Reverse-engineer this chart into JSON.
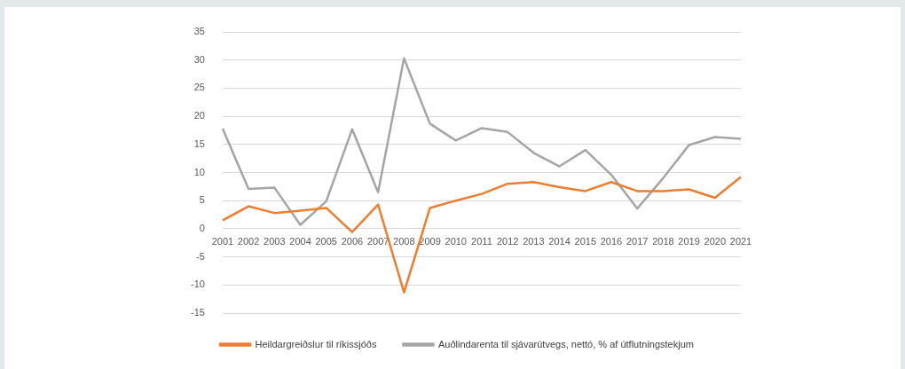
{
  "chart_data": {
    "type": "line",
    "categories": [
      "2001",
      "2002",
      "2003",
      "2004",
      "2005",
      "2006",
      "2007",
      "2008",
      "2009",
      "2010",
      "2011",
      "2012",
      "2013",
      "2014",
      "2015",
      "2016",
      "2017",
      "2018",
      "2019",
      "2020",
      "2021"
    ],
    "series": [
      {
        "name": "Heildargreiðslur til ríkissjóðs",
        "color": "#ed7d31",
        "values": [
          1.5,
          4,
          2.8,
          3.2,
          3.7,
          -0.6,
          4.3,
          -11.3,
          3.7,
          5,
          6.2,
          8,
          8.3,
          7.4,
          6.7,
          8.3,
          6.7,
          6.7,
          7,
          5.5,
          9.2
        ]
      },
      {
        "name": "Auðlindarenta til sjávarútvegs, nettó, % af útflutningstekjum",
        "color": "#a5a5a5",
        "values": [
          17.8,
          7.1,
          7.3,
          0.7,
          4.9,
          17.7,
          6.5,
          30.3,
          18.7,
          15.7,
          17.9,
          17.2,
          13.5,
          11.1,
          14,
          9.6,
          3.6,
          9,
          14.9,
          16.3,
          16
        ]
      }
    ],
    "ylim": [
      -15,
      35
    ],
    "yticks": [
      -15,
      -10,
      -5,
      0,
      5,
      10,
      15,
      20,
      25,
      30,
      35
    ],
    "grid": "y",
    "legend": "bottom",
    "marker": "none",
    "line_style": "solid"
  }
}
